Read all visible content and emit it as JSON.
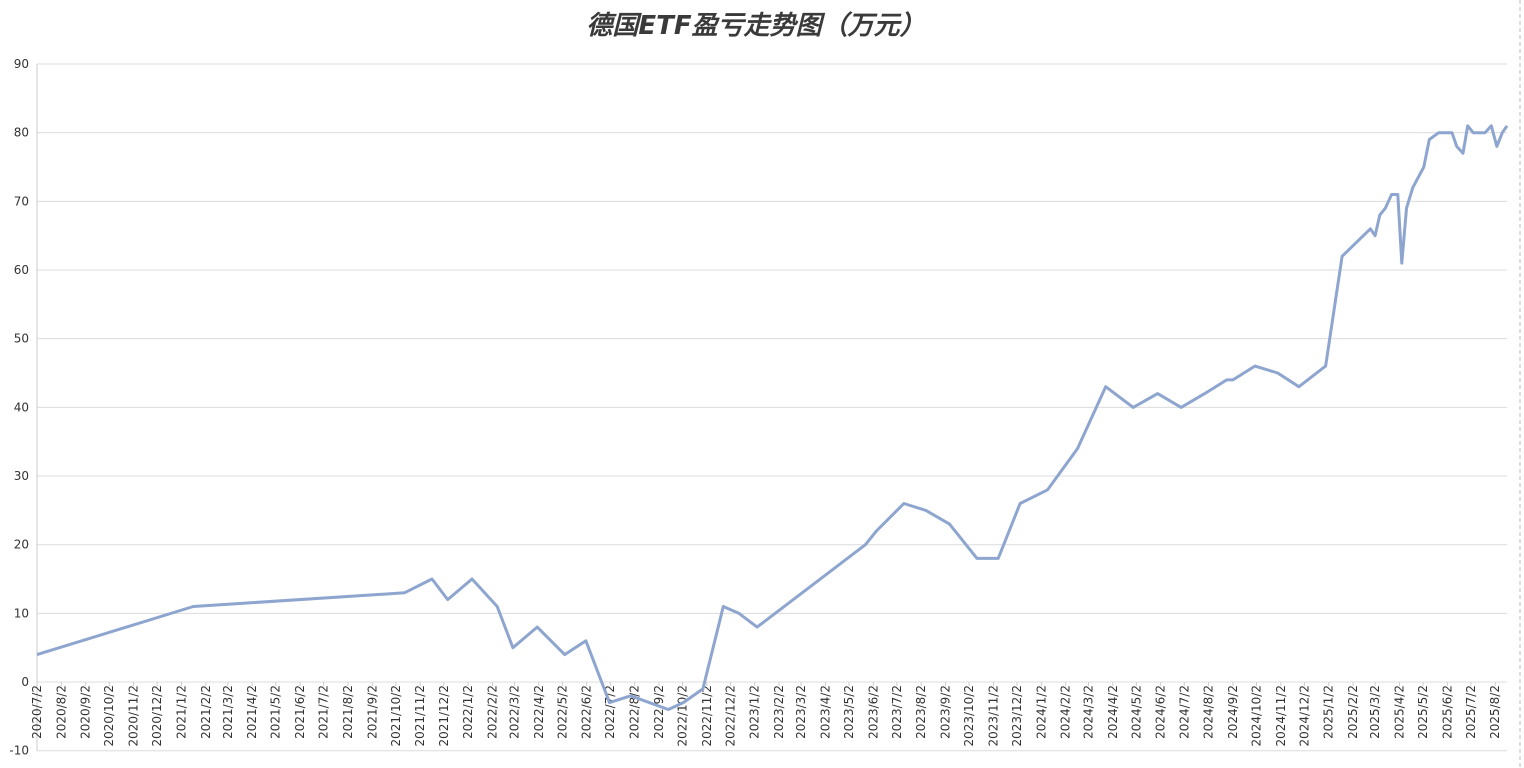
{
  "chart_data": {
    "type": "line",
    "title": "德国ETF盈亏走势图（万元）",
    "x": [
      "2020/7/2",
      "2021/1/17",
      "2021/10/13",
      "2021/11/17",
      "2021/12/7",
      "2022/1/7",
      "2022/2/8",
      "2022/2/28",
      "2022/3/31",
      "2022/5/5",
      "2022/6/1",
      "2022/7/1",
      "2022/7/28",
      "2022/9/14",
      "2022/10/3",
      "2022/10/28",
      "2022/11/23",
      "2022/12/13",
      "2023/1/5",
      "2023/5/23",
      "2023/6/6",
      "2023/7/11",
      "2023/8/8",
      "2023/9/7",
      "2023/10/12",
      "2023/11/8",
      "2023/12/6",
      "2024/1/10",
      "2024/2/17",
      "2024/3/24",
      "2024/4/28",
      "2024/5/29",
      "2024/6/28",
      "2024/7/28",
      "2024/8/25",
      "2024/9/2",
      "2024/9/30",
      "2024/10/29",
      "2024/11/25",
      "2024/12/29",
      "2025/1/19",
      "2025/2/24",
      "2025/3/2",
      "2025/3/8",
      "2025/3/15",
      "2025/3/23",
      "2025/3/31",
      "2025/4/5",
      "2025/4/11",
      "2025/4/19",
      "2025/5/3",
      "2025/5/10",
      "2025/5/22",
      "2025/6/8",
      "2025/6/14",
      "2025/6/22",
      "2025/6/28",
      "2025/7/5",
      "2025/7/20",
      "2025/7/28",
      "2025/8/4",
      "2025/8/11",
      "2025/8/17"
    ],
    "series": [
      {
        "color": "#8da5cf",
        "values": [
          4,
          11,
          13,
          15,
          12,
          15,
          11,
          5,
          8,
          4,
          6,
          -3,
          -2,
          -4,
          -3,
          -1,
          11,
          10,
          8,
          20,
          22,
          26,
          25,
          23,
          18,
          18,
          26,
          28,
          34,
          43,
          40,
          42,
          40,
          42,
          44,
          44,
          46,
          45,
          43,
          46,
          62,
          66,
          65,
          68,
          69,
          71,
          71,
          61,
          69,
          72,
          75,
          79,
          80,
          80,
          78,
          77,
          81,
          80,
          80,
          81,
          78,
          80,
          81
        ]
      }
    ],
    "xlim": [
      "2020/7/2",
      "2025/8/17"
    ],
    "xticks": [
      "2020/7/2",
      "2020/8/2",
      "2020/9/2",
      "2020/10/2",
      "2020/11/2",
      "2020/12/2",
      "2021/1/2",
      "2021/2/2",
      "2021/3/2",
      "2021/4/2",
      "2021/5/2",
      "2021/6/2",
      "2021/7/2",
      "2021/8/2",
      "2021/9/2",
      "2021/10/2",
      "2021/11/2",
      "2021/12/2",
      "2022/1/2",
      "2022/2/2",
      "2022/3/2",
      "2022/4/2",
      "2022/5/2",
      "2022/6/2",
      "2022/7/2",
      "2022/8/2",
      "2022/9/2",
      "2022/10/2",
      "2022/11/2",
      "2022/12/2",
      "2023/1/2",
      "2023/2/2",
      "2023/3/2",
      "2023/4/2",
      "2023/5/2",
      "2023/6/2",
      "2023/7/2",
      "2023/8/2",
      "2023/9/2",
      "2023/10/2",
      "2023/11/2",
      "2023/12/2",
      "2024/1/2",
      "2024/2/2",
      "2024/3/2",
      "2024/4/2",
      "2024/5/2",
      "2024/6/2",
      "2024/7/2",
      "2024/8/2",
      "2024/9/2",
      "2024/10/2",
      "2024/11/2",
      "2024/12/2",
      "2025/1/2",
      "2025/2/2",
      "2025/3/2",
      "2025/4/2",
      "2025/5/2",
      "2025/6/2",
      "2025/7/2",
      "2025/8/2"
    ],
    "ylim": [
      -10,
      90
    ],
    "yticks": [
      -10,
      0,
      10,
      20,
      30,
      40,
      50,
      60,
      70,
      80,
      90
    ],
    "grid": true
  }
}
